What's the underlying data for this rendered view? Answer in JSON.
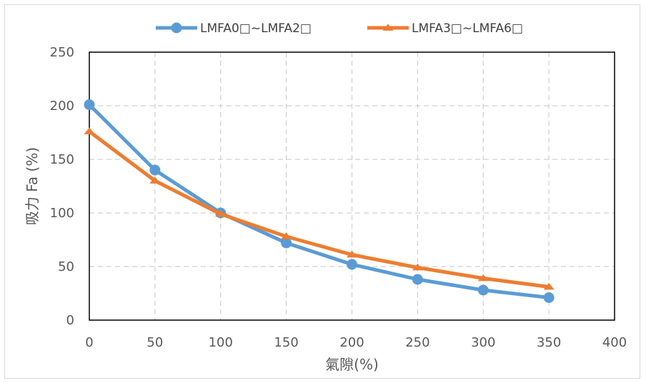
{
  "chart_data": {
    "type": "line",
    "title": "",
    "xlabel": "氣隙(%)",
    "ylabel": "吸力 Fa (%)",
    "xlim": [
      0,
      400
    ],
    "ylim": [
      0,
      250
    ],
    "x_ticks": [
      0,
      50,
      100,
      150,
      200,
      250,
      300,
      350,
      400
    ],
    "y_ticks": [
      0,
      50,
      100,
      150,
      200,
      250
    ],
    "grid": true,
    "legend_position": "top",
    "x": [
      0,
      50,
      100,
      150,
      200,
      250,
      300,
      350
    ],
    "series": [
      {
        "name": "LMFA0□~LMFA2□",
        "color": "#5b9bd5",
        "marker": "circle",
        "values": [
          201,
          140,
          100,
          72,
          52,
          38,
          28,
          21
        ]
      },
      {
        "name": "LMFA3□~LMFA6□",
        "color": "#ed7d31",
        "marker": "triangle",
        "values": [
          176,
          130,
          99,
          78,
          61,
          49,
          39,
          31
        ]
      }
    ]
  }
}
